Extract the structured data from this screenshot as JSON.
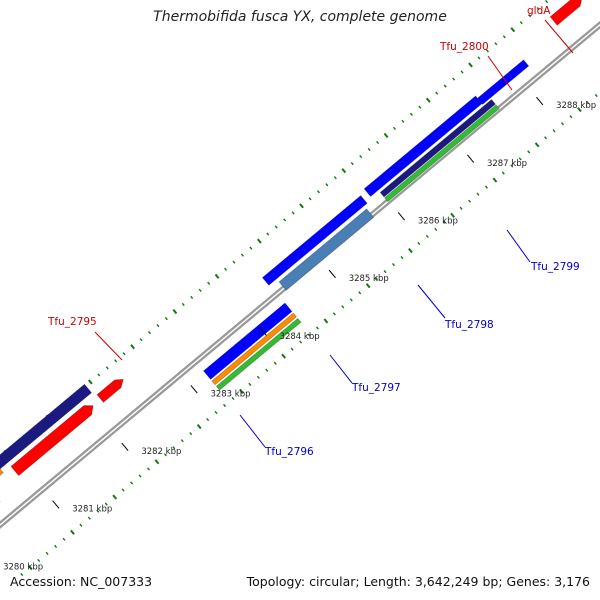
{
  "title": "Thermobifida fusca YX, complete genome",
  "footer": {
    "accession": "Accession: NC_007333",
    "summary": "Topology: circular; Length: 3,642,249 bp; Genes: 3,176"
  },
  "scale": {
    "unit": "kbp",
    "ticks": [
      "3280 kbp",
      "3281 kbp",
      "3282 kbp",
      "3283 kbp",
      "3284 kbp",
      "3285 kbp",
      "3286 kbp",
      "3287 kbp",
      "3288 kbp"
    ]
  },
  "gene_labels": [
    {
      "text": "Tfu_2795",
      "strand": "forward"
    },
    {
      "text": "Tfu_2800",
      "strand": "forward"
    },
    {
      "text": "gldA",
      "strand": "forward"
    },
    {
      "text": "Tfu_2796",
      "strand": "reverse"
    },
    {
      "text": "Tfu_2797",
      "strand": "reverse"
    },
    {
      "text": "Tfu_2798",
      "strand": "reverse"
    },
    {
      "text": "Tfu_2799",
      "strand": "reverse"
    }
  ],
  "colors": {
    "forward_label": "#cc0000",
    "reverse_label": "#0000cc",
    "backbone": "#888888",
    "tick": "#117711",
    "red": "#ff0000",
    "navy": "#1a1a80",
    "orange": "#ff8c00",
    "blue": "#0000ff",
    "steelblue": "#4a7fb5",
    "green": "#33bb33",
    "cyan": "#22dddd"
  }
}
